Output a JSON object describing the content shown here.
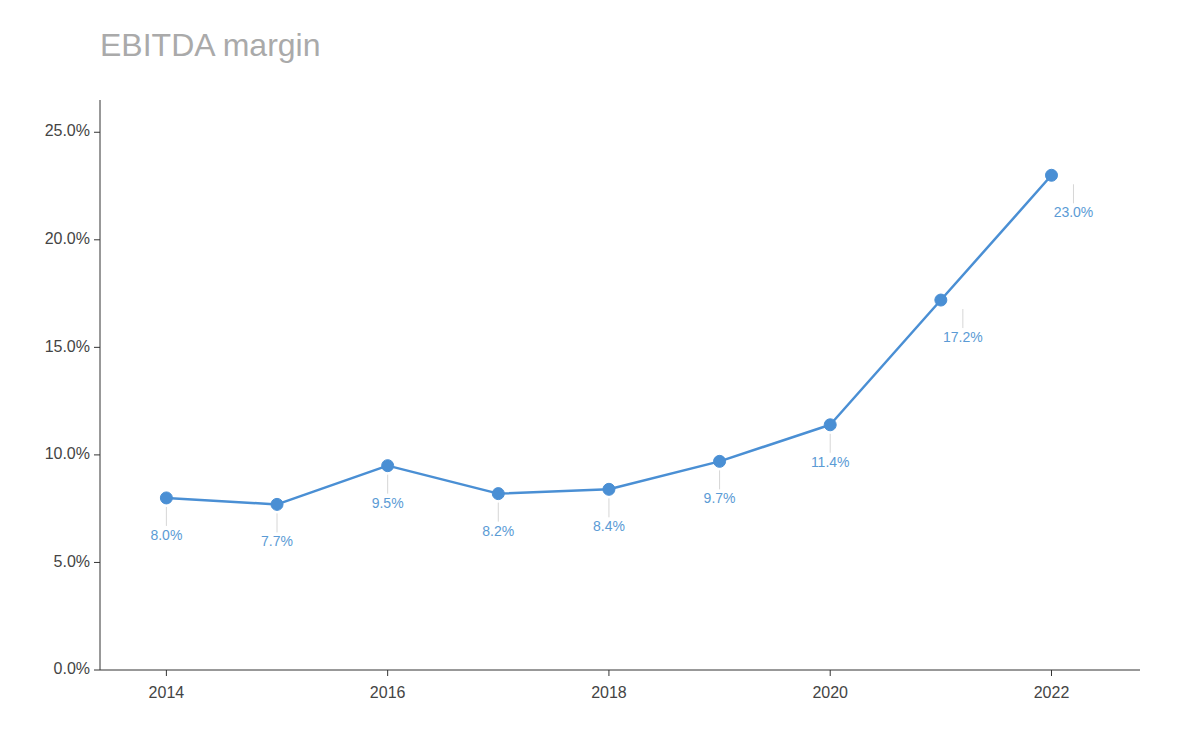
{
  "chart_data": {
    "type": "line",
    "title": "EBITDA margin",
    "x": [
      2014,
      2015,
      2016,
      2017,
      2018,
      2019,
      2020,
      2021,
      2022
    ],
    "values": [
      0.08,
      0.077,
      0.095,
      0.082,
      0.084,
      0.097,
      0.114,
      0.172,
      0.23
    ],
    "value_labels": [
      "8.0%",
      "7.7%",
      "9.5%",
      "8.2%",
      "8.4%",
      "9.7%",
      "11.4%",
      "17.2%",
      "23.0%"
    ],
    "data_labels": true,
    "color": "#4A8FD4",
    "marker": "circle",
    "xlim": [
      2013.4,
      2022.8
    ],
    "xticks": [
      2014,
      2016,
      2018,
      2020,
      2022
    ],
    "ylim": [
      0.0,
      0.265
    ],
    "yticks": [
      {
        "value": 0.0,
        "label": "0.0%"
      },
      {
        "value": 0.05,
        "label": "5.0%"
      },
      {
        "value": 0.1,
        "label": "10.0%"
      },
      {
        "value": 0.15,
        "label": "15.0%"
      },
      {
        "value": 0.2,
        "label": "20.0%"
      },
      {
        "value": 0.25,
        "label": "25.0%"
      }
    ],
    "grid": false
  }
}
